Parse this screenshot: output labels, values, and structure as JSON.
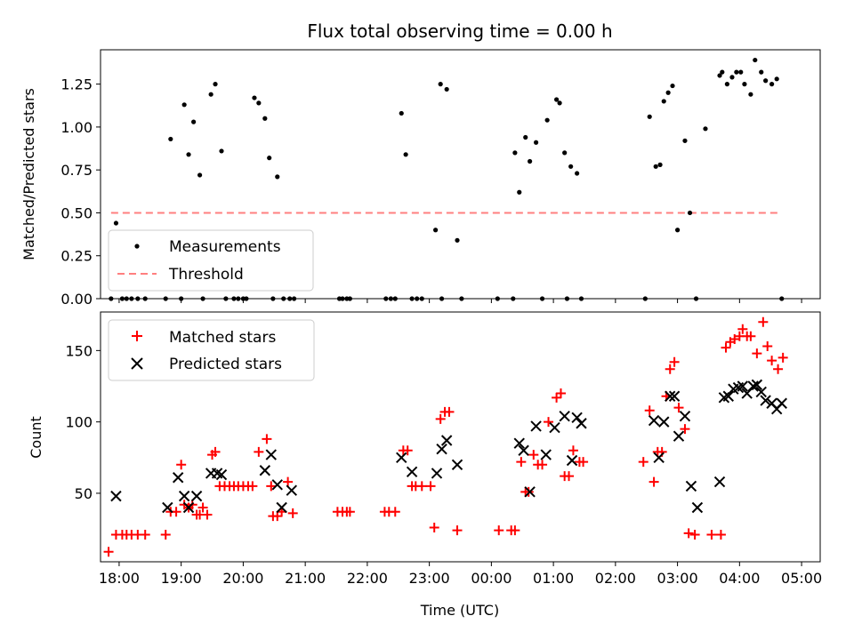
{
  "title": "Flux total observing time = 0.00 h",
  "colors": {
    "matched": "#ff0000",
    "predicted": "#000000",
    "measurement": "#000000",
    "threshold": "#ff7f7f",
    "axis": "#000000",
    "background": "#ffffff"
  },
  "x_axis": {
    "label": "Time (UTC)",
    "range_hours": [
      17.7,
      29.3
    ],
    "ticks": [
      {
        "h": 18,
        "label": "18:00"
      },
      {
        "h": 19,
        "label": "19:00"
      },
      {
        "h": 20,
        "label": "20:00"
      },
      {
        "h": 21,
        "label": "21:00"
      },
      {
        "h": 22,
        "label": "22:00"
      },
      {
        "h": 23,
        "label": "23:00"
      },
      {
        "h": 24,
        "label": "00:00"
      },
      {
        "h": 25,
        "label": "01:00"
      },
      {
        "h": 26,
        "label": "02:00"
      },
      {
        "h": 27,
        "label": "03:00"
      },
      {
        "h": 28,
        "label": "04:00"
      },
      {
        "h": 29,
        "label": "05:00"
      }
    ]
  },
  "chart_data": [
    {
      "type": "scatter",
      "panel": "top",
      "title": "Flux total observing time = 0.00 h",
      "ylabel": "Matched/Predicted stars",
      "ylim": [
        0,
        1.45
      ],
      "yticks": [
        {
          "v": 0.0,
          "label": "0.00"
        },
        {
          "v": 0.25,
          "label": "0.25"
        },
        {
          "v": 0.5,
          "label": "0.50"
        },
        {
          "v": 0.75,
          "label": "0.75"
        },
        {
          "v": 1.0,
          "label": "1.00"
        },
        {
          "v": 1.25,
          "label": "1.25"
        }
      ],
      "legend": {
        "position": "lower-left",
        "entries": [
          "Measurements",
          "Threshold"
        ]
      },
      "series": [
        {
          "name": "Measurements",
          "marker": "dot",
          "x": [
            17.87,
            17.95,
            18.05,
            18.12,
            18.2,
            18.3,
            18.42,
            18.75,
            18.83,
            19.0,
            19.05,
            19.12,
            19.2,
            19.3,
            19.35,
            19.48,
            19.55,
            19.65,
            19.72,
            19.85,
            19.92,
            20.0,
            20.05,
            20.18,
            20.25,
            20.35,
            20.42,
            20.48,
            20.55,
            20.65,
            20.75,
            20.82,
            21.55,
            21.6,
            21.67,
            21.72,
            22.3,
            22.38,
            22.45,
            22.55,
            22.62,
            22.72,
            22.8,
            22.88,
            23.1,
            23.18,
            23.2,
            23.28,
            23.45,
            23.52,
            24.1,
            24.35,
            24.38,
            24.45,
            24.55,
            24.62,
            24.72,
            24.82,
            24.9,
            25.05,
            25.1,
            25.18,
            25.22,
            25.28,
            25.38,
            25.45,
            26.48,
            26.55,
            26.65,
            26.72,
            26.78,
            26.85,
            26.92,
            27.0,
            27.12,
            27.2,
            27.3,
            27.45,
            27.68,
            27.72,
            27.8,
            27.88,
            27.95,
            28.02,
            28.08,
            28.18,
            28.25,
            28.35,
            28.42,
            28.52,
            28.6,
            28.68
          ],
          "y": [
            0.0,
            0.44,
            0.0,
            0.0,
            0.0,
            0.0,
            0.0,
            0.0,
            0.93,
            0.0,
            1.13,
            0.84,
            1.03,
            0.72,
            0.0,
            1.19,
            1.25,
            0.86,
            0.0,
            0.0,
            0.0,
            0.0,
            0.0,
            1.17,
            1.14,
            1.05,
            0.82,
            0.0,
            0.71,
            0.0,
            0.0,
            0.0,
            0.0,
            0.0,
            0.0,
            0.0,
            0.0,
            0.0,
            0.0,
            1.08,
            0.84,
            0.0,
            0.0,
            0.0,
            0.4,
            1.25,
            0.0,
            1.22,
            0.34,
            0.0,
            0.0,
            0.0,
            0.85,
            0.62,
            0.94,
            0.8,
            0.91,
            0.0,
            1.04,
            1.16,
            1.14,
            0.85,
            0.0,
            0.77,
            0.73,
            0.0,
            0.0,
            1.06,
            0.77,
            0.78,
            1.15,
            1.2,
            1.24,
            0.4,
            0.92,
            0.5,
            0.0,
            0.99,
            1.3,
            1.32,
            1.25,
            1.29,
            1.32,
            1.32,
            1.25,
            1.19,
            1.39,
            1.32,
            1.27,
            1.25,
            1.28,
            0.0
          ]
        },
        {
          "name": "Threshold",
          "marker": "dashed-line",
          "x": [
            17.87,
            28.68
          ],
          "y": [
            0.5,
            0.5
          ]
        }
      ]
    },
    {
      "type": "scatter",
      "panel": "bottom",
      "ylabel": "Count",
      "xlabel": "Time (UTC)",
      "ylim": [
        2,
        177
      ],
      "yticks": [
        {
          "v": 50,
          "label": "50"
        },
        {
          "v": 100,
          "label": "100"
        },
        {
          "v": 150,
          "label": "150"
        }
      ],
      "legend": {
        "position": "top-left",
        "entries": [
          "Matched stars",
          "Predicted stars"
        ]
      },
      "series": [
        {
          "name": "Matched stars",
          "marker": "plus",
          "x": [
            17.83,
            17.95,
            18.05,
            18.12,
            18.2,
            18.3,
            18.42,
            18.75,
            18.83,
            18.92,
            19.0,
            19.05,
            19.12,
            19.18,
            19.25,
            19.3,
            19.35,
            19.42,
            19.5,
            19.55,
            19.62,
            19.7,
            19.78,
            19.85,
            19.92,
            20.0,
            20.08,
            20.15,
            20.25,
            20.38,
            20.45,
            20.48,
            20.55,
            20.62,
            20.72,
            20.8,
            21.52,
            21.6,
            21.67,
            21.72,
            22.28,
            22.35,
            22.45,
            22.58,
            22.65,
            22.72,
            22.78,
            22.88,
            23.02,
            23.08,
            23.18,
            23.25,
            23.32,
            23.45,
            24.12,
            24.32,
            24.38,
            24.48,
            24.55,
            24.6,
            24.68,
            24.75,
            24.82,
            24.92,
            25.05,
            25.12,
            25.18,
            25.25,
            25.32,
            25.42,
            25.48,
            26.45,
            26.55,
            26.62,
            26.68,
            26.75,
            26.82,
            26.88,
            26.95,
            27.02,
            27.12,
            27.18,
            27.28,
            27.55,
            27.7,
            27.78,
            27.85,
            27.92,
            28.0,
            28.05,
            28.12,
            28.18,
            28.28,
            28.38,
            28.45,
            28.52,
            28.62,
            28.7
          ],
          "y": [
            9,
            21,
            21,
            21,
            21,
            21,
            21,
            21,
            37,
            37,
            70,
            42,
            40,
            42,
            35,
            35,
            40,
            35,
            77,
            79,
            55,
            55,
            55,
            55,
            55,
            55,
            55,
            55,
            79,
            88,
            55,
            34,
            34,
            37,
            58,
            36,
            37,
            37,
            37,
            37,
            37,
            37,
            37,
            80,
            80,
            55,
            55,
            55,
            55,
            26,
            102,
            107,
            107,
            24,
            24,
            24,
            24,
            72,
            51,
            51,
            77,
            70,
            70,
            100,
            117,
            120,
            62,
            62,
            80,
            72,
            72,
            72,
            108,
            58,
            79,
            79,
            118,
            137,
            142,
            110,
            95,
            22,
            21,
            21,
            21,
            152,
            156,
            158,
            160,
            165,
            160,
            160,
            148,
            170,
            153,
            143,
            137,
            145
          ]
        },
        {
          "name": "Predicted stars",
          "marker": "x",
          "x": [
            17.95,
            18.78,
            18.95,
            19.05,
            19.12,
            19.25,
            19.48,
            19.58,
            19.65,
            20.35,
            20.45,
            20.55,
            20.62,
            20.78,
            22.55,
            22.72,
            23.12,
            23.2,
            23.28,
            23.45,
            24.45,
            24.52,
            24.62,
            24.72,
            24.88,
            25.02,
            25.18,
            25.3,
            25.38,
            25.45,
            26.62,
            26.7,
            26.78,
            26.88,
            26.95,
            27.02,
            27.12,
            27.22,
            27.32,
            27.68,
            27.75,
            27.82,
            27.9,
            27.98,
            28.05,
            28.12,
            28.22,
            28.28,
            28.35,
            28.42,
            28.52,
            28.6,
            28.68
          ],
          "y": [
            48,
            40,
            61,
            48,
            40,
            48,
            64,
            64,
            63,
            66,
            77,
            56,
            40,
            52,
            75,
            65,
            64,
            81,
            87,
            70,
            85,
            80,
            51,
            97,
            77,
            96,
            104,
            73,
            103,
            99,
            101,
            75,
            100,
            118,
            118,
            90,
            104,
            55,
            40,
            58,
            117,
            118,
            123,
            124,
            125,
            120,
            125,
            126,
            121,
            115,
            113,
            109,
            113
          ]
        }
      ]
    }
  ]
}
